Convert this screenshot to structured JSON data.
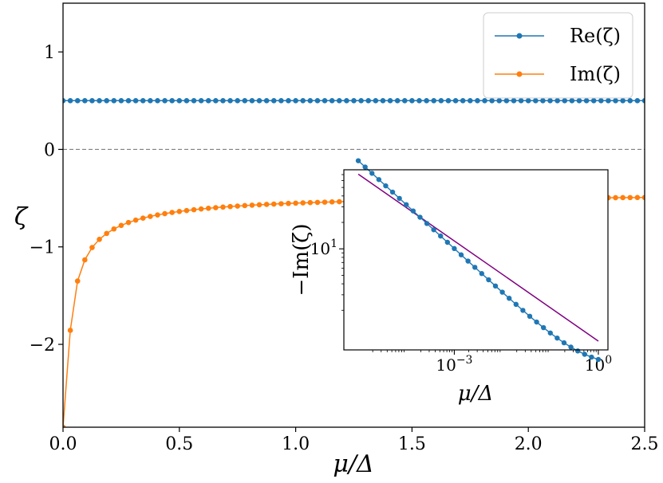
{
  "chart_data": [
    {
      "type": "line",
      "xlabel": "μ/Δ",
      "ylabel": "ζ",
      "xlim": [
        0,
        2.5
      ],
      "ylim": [
        -2.85,
        1.5
      ],
      "xticks": [
        0.0,
        0.5,
        1.0,
        1.5,
        2.0,
        2.5
      ],
      "xtick_labels": [
        "0.0",
        "0.5",
        "1.0",
        "1.5",
        "2.0",
        "2.5"
      ],
      "yticks": [
        1,
        0,
        -1,
        -2
      ],
      "ytick_labels": [
        "1",
        "0",
        "−1",
        "−2"
      ],
      "reference_line": {
        "y": 0,
        "style": "dashed",
        "color": "#808080"
      },
      "legend_position": "upper-right",
      "series": [
        {
          "name": "Re(ζ)",
          "color": "#1f77b4",
          "marker": "circle",
          "formula": "constant",
          "value": 0.5,
          "x_start": 0.0,
          "x_end": 2.5,
          "x_step": 0.03125
        },
        {
          "name": "Im(ζ)",
          "color": "#ff7f0e",
          "marker": "circle",
          "formula": "-sqrt(2*(1+1/(2x)))/pi",
          "x_start": 0.0,
          "x_end": 2.5,
          "x_step": 0.03125,
          "note_first_point": -2.85
        }
      ]
    },
    {
      "type": "line",
      "inset": true,
      "xscale": "log",
      "yscale": "log",
      "xlabel": "μ/Δ",
      "ylabel": "−Im(ζ)",
      "xtick_labels": [
        "10−3",
        "100"
      ],
      "ytick_labels": [
        "101"
      ],
      "xlim_log10": [
        -5.3,
        0.2
      ],
      "ylim_log10": [
        -0.15,
        1.9
      ],
      "series": [
        {
          "name": "−Im(ζ)",
          "color": "#1f77b4",
          "marker": "circle",
          "log10_x_start": -5,
          "log10_x_end": 0,
          "count": 36
        },
        {
          "name": "asymptote",
          "color": "#800080",
          "marker": "none",
          "log10_x": [
            -5,
            0
          ],
          "log10_y": [
            1.85,
            -0.05
          ]
        }
      ]
    }
  ]
}
